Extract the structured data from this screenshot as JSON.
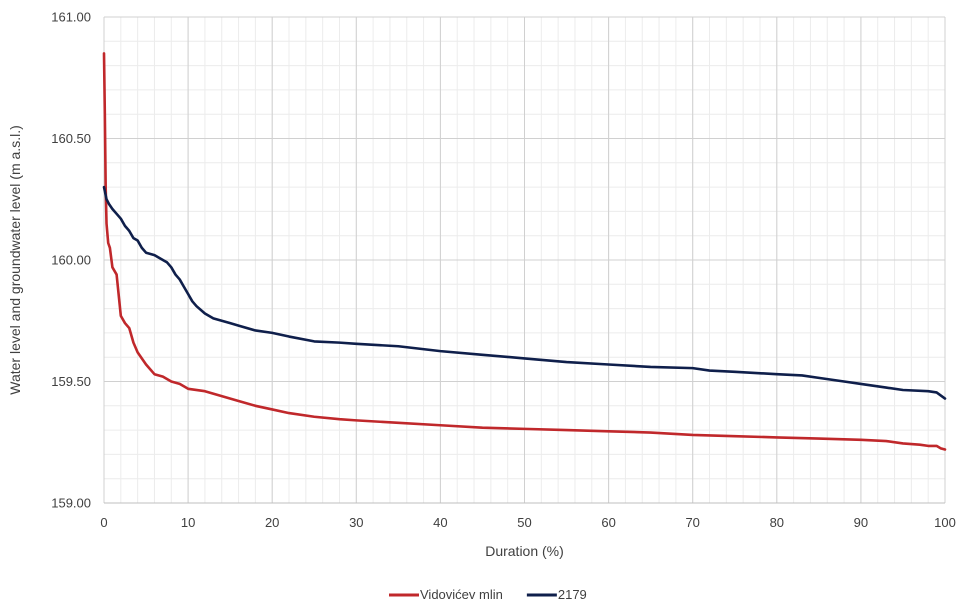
{
  "chart_data": {
    "type": "line",
    "title": "",
    "xlabel": "Duration (%)",
    "ylabel": "Water level and groundwater level (m a.s.l.)",
    "xlim": [
      0,
      100
    ],
    "ylim": [
      159.0,
      161.0
    ],
    "x_ticks": [
      0,
      10,
      20,
      30,
      40,
      50,
      60,
      70,
      80,
      90,
      100
    ],
    "x_tick_labels": [
      "0",
      "10",
      "20",
      "30",
      "40",
      "50",
      "60",
      "70",
      "80",
      "90",
      "100"
    ],
    "y_ticks": [
      159.0,
      159.5,
      160.0,
      160.5,
      161.0
    ],
    "y_tick_labels": [
      "159.00",
      "159.50",
      "160.00",
      "160.50",
      "161.00"
    ],
    "grid": true,
    "minor_grid": true,
    "legend_position": "bottom-center",
    "series": [
      {
        "name": "Vidovićev mlin",
        "color": "#c0282b",
        "x": [
          0,
          0.1,
          0.2,
          0.3,
          0.5,
          0.7,
          1.0,
          1.5,
          2.0,
          2.5,
          3.0,
          3.5,
          4.0,
          5.0,
          6.0,
          7.0,
          8.0,
          9.0,
          10.0,
          12.0,
          14.0,
          16.0,
          18.0,
          20.0,
          22.0,
          25.0,
          28.0,
          30.0,
          35.0,
          40.0,
          45.0,
          50.0,
          55.0,
          60.0,
          65.0,
          70.0,
          75.0,
          80.0,
          85.0,
          90.0,
          93.0,
          95.0,
          97.0,
          98.0,
          99.0,
          99.5,
          100.0
        ],
        "values": [
          160.85,
          160.6,
          160.3,
          160.15,
          160.07,
          160.05,
          159.97,
          159.94,
          159.77,
          159.74,
          159.72,
          159.66,
          159.62,
          159.57,
          159.53,
          159.52,
          159.5,
          159.49,
          159.47,
          159.46,
          159.44,
          159.42,
          159.4,
          159.385,
          159.37,
          159.355,
          159.345,
          159.34,
          159.33,
          159.32,
          159.31,
          159.305,
          159.3,
          159.295,
          159.29,
          159.28,
          159.275,
          159.27,
          159.265,
          159.26,
          159.255,
          159.245,
          159.24,
          159.235,
          159.235,
          159.225,
          159.22
        ]
      },
      {
        "name": "2179",
        "color": "#0f1f4b",
        "x": [
          0,
          0.3,
          0.6,
          1.0,
          1.5,
          2.0,
          2.5,
          3.0,
          3.5,
          4.0,
          4.5,
          5.0,
          6.0,
          7.0,
          7.5,
          8.0,
          8.5,
          9.0,
          9.5,
          10.0,
          10.5,
          11.0,
          12.0,
          13.0,
          14.0,
          15.0,
          16.0,
          18.0,
          20.0,
          22.0,
          25.0,
          28.0,
          30.0,
          35.0,
          40.0,
          45.0,
          50.0,
          55.0,
          60.0,
          65.0,
          70.0,
          72.0,
          75.0,
          80.0,
          83.0,
          85.0,
          88.0,
          90.0,
          93.0,
          95.0,
          98.0,
          99.0,
          100.0
        ],
        "values": [
          160.3,
          160.25,
          160.23,
          160.21,
          160.19,
          160.17,
          160.14,
          160.12,
          160.09,
          160.08,
          160.05,
          160.03,
          160.02,
          160.0,
          159.99,
          159.97,
          159.94,
          159.92,
          159.89,
          159.86,
          159.83,
          159.81,
          159.78,
          159.76,
          159.75,
          159.74,
          159.73,
          159.71,
          159.7,
          159.685,
          159.665,
          159.66,
          159.655,
          159.645,
          159.625,
          159.61,
          159.595,
          159.58,
          159.57,
          159.56,
          159.555,
          159.545,
          159.54,
          159.53,
          159.525,
          159.515,
          159.5,
          159.49,
          159.475,
          159.465,
          159.46,
          159.455,
          159.43
        ]
      }
    ]
  }
}
